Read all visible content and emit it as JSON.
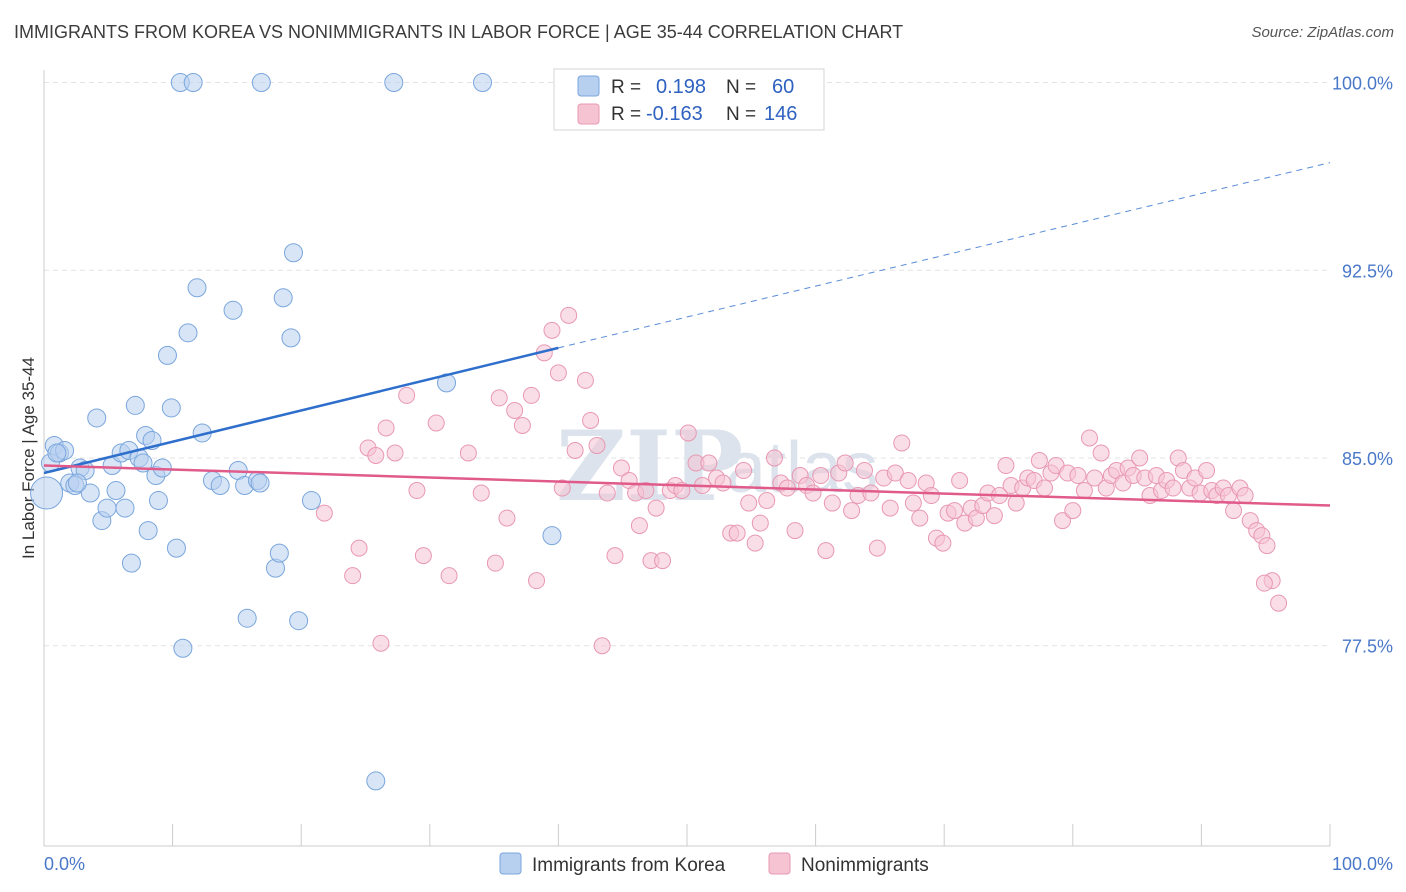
{
  "chart_data": {
    "type": "scatter",
    "title": "IMMIGRANTS FROM KOREA VS NONIMMIGRANTS IN LABOR FORCE | AGE 35-44 CORRELATION CHART",
    "source": "Source: ZipAtlas.com",
    "xlabel": "",
    "ylabel": "In Labor Force | Age 35-44",
    "xlim": [
      0,
      100
    ],
    "ylim": [
      69.5,
      100.5
    ],
    "x_tick_labels": {
      "min": "0.0%",
      "max": "100.0%"
    },
    "y_ticks": [
      {
        "value": 100.0,
        "label": "100.0%"
      },
      {
        "value": 92.5,
        "label": "92.5%"
      },
      {
        "value": 85.0,
        "label": "85.0%"
      },
      {
        "value": 77.5,
        "label": "77.5%"
      }
    ],
    "watermark": {
      "zip": "ZIP",
      "atlas": "atlas"
    },
    "colors": {
      "korea_fill": "#b8d0f0",
      "korea_stroke": "#7aa6dc",
      "korea_line": "#2f6fcc",
      "non_fill": "#f6c3d3",
      "non_stroke": "#e898b3",
      "non_line": "#e05a8a",
      "grid": "#e3e3e3",
      "axis_text": "#4a78c8"
    },
    "stats": [
      {
        "series": "Immigrants from Korea",
        "r_label": "R =",
        "r_value": "0.198",
        "n_label": "N =",
        "n_value": "60"
      },
      {
        "series": "Nonimmigrants",
        "r_label": "R =",
        "r_value": "-0.163",
        "n_label": "N =",
        "n_value": "146"
      }
    ],
    "series": [
      {
        "name": "Immigrants from Korea",
        "trend": {
          "x0": 0,
          "y0": 84.4,
          "x1": 40,
          "y1": 89.4,
          "dash_x1": 100,
          "dash_y1": 96.8
        },
        "points": [
          [
            0.2,
            83.6
          ],
          [
            0.5,
            84.8
          ],
          [
            0.8,
            85.5
          ],
          [
            1.2,
            85.2
          ],
          [
            1.6,
            85.3
          ],
          [
            2.0,
            84.0
          ],
          [
            2.4,
            83.9
          ],
          [
            2.8,
            84.6
          ],
          [
            3.2,
            84.5
          ],
          [
            3.6,
            83.6
          ],
          [
            4.1,
            86.6
          ],
          [
            4.5,
            82.5
          ],
          [
            4.9,
            83.0
          ],
          [
            5.3,
            84.7
          ],
          [
            5.6,
            83.7
          ],
          [
            6.0,
            85.2
          ],
          [
            6.3,
            83.0
          ],
          [
            6.6,
            85.3
          ],
          [
            6.8,
            80.8
          ],
          [
            7.1,
            87.1
          ],
          [
            7.4,
            85.0
          ],
          [
            7.7,
            84.8
          ],
          [
            7.9,
            85.9
          ],
          [
            8.1,
            82.1
          ],
          [
            8.4,
            85.7
          ],
          [
            8.7,
            84.3
          ],
          [
            8.9,
            83.3
          ],
          [
            9.2,
            84.6
          ],
          [
            9.6,
            89.1
          ],
          [
            9.9,
            87.0
          ],
          [
            10.3,
            81.4
          ],
          [
            10.6,
            100.0
          ],
          [
            10.8,
            77.4
          ],
          [
            11.2,
            90.0
          ],
          [
            11.6,
            100.0
          ],
          [
            11.9,
            91.8
          ],
          [
            12.3,
            86.0
          ],
          [
            13.1,
            84.1
          ],
          [
            13.7,
            83.9
          ],
          [
            14.7,
            90.9
          ],
          [
            15.1,
            84.5
          ],
          [
            15.6,
            83.9
          ],
          [
            15.8,
            78.6
          ],
          [
            16.6,
            84.1
          ],
          [
            16.8,
            84.0
          ],
          [
            16.9,
            100.0
          ],
          [
            18.0,
            80.6
          ],
          [
            18.3,
            81.2
          ],
          [
            18.6,
            91.4
          ],
          [
            19.2,
            89.8
          ],
          [
            19.4,
            93.2
          ],
          [
            19.8,
            78.5
          ],
          [
            20.8,
            83.3
          ],
          [
            25.8,
            72.1
          ],
          [
            27.2,
            100.0
          ],
          [
            31.3,
            88.0
          ],
          [
            34.1,
            100.0
          ],
          [
            39.5,
            81.9
          ],
          [
            1.0,
            85.2
          ],
          [
            2.6,
            84.0
          ]
        ],
        "sizes": {
          "default": 9,
          "large_index": 0,
          "large_r": 16
        }
      },
      {
        "name": "Nonimmigrants",
        "trend": {
          "x0": 0,
          "y0": 84.7,
          "x1": 100,
          "y1": 83.1
        },
        "points": [
          [
            21.8,
            82.8
          ],
          [
            24.0,
            80.3
          ],
          [
            24.5,
            81.4
          ],
          [
            25.2,
            85.4
          ],
          [
            25.8,
            85.1
          ],
          [
            26.2,
            77.6
          ],
          [
            26.6,
            86.2
          ],
          [
            27.3,
            85.2
          ],
          [
            28.2,
            87.5
          ],
          [
            29.0,
            83.7
          ],
          [
            29.5,
            81.1
          ],
          [
            30.5,
            86.4
          ],
          [
            31.5,
            80.3
          ],
          [
            33.0,
            85.2
          ],
          [
            34.0,
            83.6
          ],
          [
            35.1,
            80.8
          ],
          [
            35.4,
            87.4
          ],
          [
            36.0,
            82.6
          ],
          [
            36.6,
            86.9
          ],
          [
            37.2,
            86.3
          ],
          [
            37.9,
            87.5
          ],
          [
            38.3,
            80.1
          ],
          [
            38.9,
            89.2
          ],
          [
            39.5,
            90.1
          ],
          [
            40.0,
            88.4
          ],
          [
            40.3,
            83.8
          ],
          [
            40.8,
            90.7
          ],
          [
            41.3,
            85.3
          ],
          [
            42.1,
            88.1
          ],
          [
            42.5,
            86.5
          ],
          [
            43.0,
            85.5
          ],
          [
            43.4,
            77.5
          ],
          [
            43.8,
            83.6
          ],
          [
            44.4,
            81.1
          ],
          [
            44.9,
            84.6
          ],
          [
            45.5,
            84.1
          ],
          [
            46.0,
            83.6
          ],
          [
            46.3,
            82.3
          ],
          [
            46.8,
            83.7
          ],
          [
            47.2,
            80.9
          ],
          [
            47.6,
            83.0
          ],
          [
            48.1,
            80.9
          ],
          [
            48.7,
            83.7
          ],
          [
            49.1,
            83.9
          ],
          [
            49.6,
            83.7
          ],
          [
            50.1,
            86.0
          ],
          [
            50.7,
            84.8
          ],
          [
            51.2,
            83.9
          ],
          [
            51.7,
            84.8
          ],
          [
            52.3,
            84.2
          ],
          [
            52.8,
            84.0
          ],
          [
            53.4,
            82.0
          ],
          [
            53.9,
            82.0
          ],
          [
            54.4,
            84.5
          ],
          [
            54.8,
            83.2
          ],
          [
            55.3,
            81.6
          ],
          [
            55.7,
            82.4
          ],
          [
            56.2,
            83.3
          ],
          [
            56.8,
            85.0
          ],
          [
            57.3,
            84.0
          ],
          [
            57.8,
            83.8
          ],
          [
            58.4,
            82.1
          ],
          [
            58.8,
            84.3
          ],
          [
            59.3,
            83.9
          ],
          [
            59.8,
            83.6
          ],
          [
            60.4,
            84.3
          ],
          [
            60.8,
            81.3
          ],
          [
            61.3,
            83.2
          ],
          [
            61.8,
            84.4
          ],
          [
            62.3,
            84.8
          ],
          [
            62.8,
            82.9
          ],
          [
            63.3,
            83.5
          ],
          [
            63.8,
            84.5
          ],
          [
            64.3,
            83.6
          ],
          [
            64.8,
            81.4
          ],
          [
            65.3,
            84.2
          ],
          [
            65.8,
            83.0
          ],
          [
            66.2,
            84.4
          ],
          [
            66.7,
            85.6
          ],
          [
            67.2,
            84.1
          ],
          [
            67.6,
            83.2
          ],
          [
            68.1,
            82.6
          ],
          [
            68.6,
            84.0
          ],
          [
            69.0,
            83.5
          ],
          [
            69.4,
            81.8
          ],
          [
            69.9,
            81.6
          ],
          [
            70.3,
            82.8
          ],
          [
            70.8,
            82.9
          ],
          [
            71.2,
            84.1
          ],
          [
            71.6,
            82.4
          ],
          [
            72.1,
            83.0
          ],
          [
            72.5,
            82.6
          ],
          [
            73.0,
            83.1
          ],
          [
            73.4,
            83.6
          ],
          [
            73.9,
            82.7
          ],
          [
            74.3,
            83.5
          ],
          [
            74.8,
            84.7
          ],
          [
            75.2,
            83.9
          ],
          [
            75.6,
            83.2
          ],
          [
            76.1,
            83.8
          ],
          [
            76.5,
            84.2
          ],
          [
            77.0,
            84.1
          ],
          [
            77.4,
            84.9
          ],
          [
            77.8,
            83.8
          ],
          [
            78.3,
            84.4
          ],
          [
            78.7,
            84.7
          ],
          [
            79.2,
            82.5
          ],
          [
            79.6,
            84.4
          ],
          [
            80.0,
            82.9
          ],
          [
            80.4,
            84.3
          ],
          [
            80.9,
            83.7
          ],
          [
            81.3,
            85.8
          ],
          [
            81.7,
            84.2
          ],
          [
            82.2,
            85.2
          ],
          [
            82.6,
            83.8
          ],
          [
            83.0,
            84.3
          ],
          [
            83.4,
            84.5
          ],
          [
            83.9,
            84.0
          ],
          [
            84.3,
            84.6
          ],
          [
            84.7,
            84.3
          ],
          [
            85.2,
            85.0
          ],
          [
            85.6,
            84.2
          ],
          [
            86.0,
            83.5
          ],
          [
            86.5,
            84.3
          ],
          [
            86.9,
            83.7
          ],
          [
            87.3,
            84.1
          ],
          [
            87.8,
            83.8
          ],
          [
            88.2,
            85.0
          ],
          [
            88.6,
            84.5
          ],
          [
            89.1,
            83.8
          ],
          [
            89.5,
            84.2
          ],
          [
            89.9,
            83.6
          ],
          [
            90.4,
            84.5
          ],
          [
            90.8,
            83.7
          ],
          [
            91.2,
            83.5
          ],
          [
            91.7,
            83.8
          ],
          [
            92.1,
            83.5
          ],
          [
            92.5,
            82.9
          ],
          [
            93.0,
            83.8
          ],
          [
            93.4,
            83.5
          ],
          [
            93.8,
            82.5
          ],
          [
            94.3,
            82.1
          ],
          [
            94.7,
            81.9
          ],
          [
            95.1,
            81.5
          ],
          [
            95.5,
            80.1
          ],
          [
            96.0,
            79.2
          ],
          [
            94.9,
            80.0
          ]
        ],
        "sizes": {
          "default": 8
        }
      }
    ],
    "legend": [
      {
        "label": "Immigrants from Korea",
        "series_index": 0
      },
      {
        "label": "Nonimmigrants",
        "series_index": 1
      }
    ]
  }
}
